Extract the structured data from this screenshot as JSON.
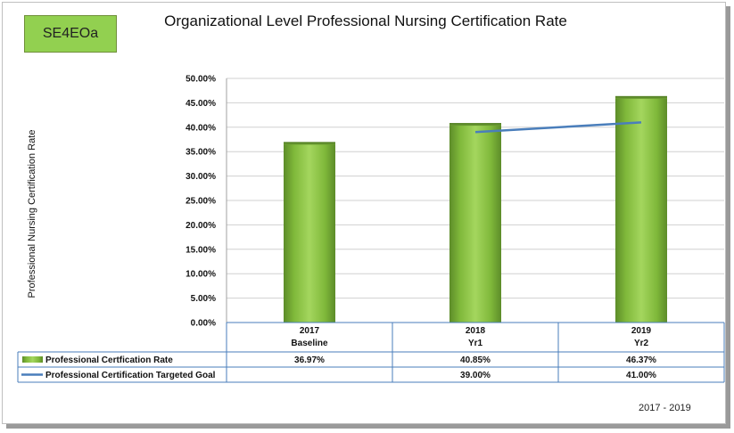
{
  "badge": "SE4EOa",
  "footer": "2017 - 2019",
  "chart_data": {
    "type": "bar",
    "title": "Organizational Level Professional Nursing Certification Rate",
    "ylabel": "Professional Nursing Certification Rate",
    "xlabel": "",
    "categories": [
      [
        "2017",
        "Baseline"
      ],
      [
        "2018",
        "Yr1"
      ],
      [
        "2019",
        "Yr2"
      ]
    ],
    "ylim": [
      0,
      50
    ],
    "yticks": [
      "50.00%",
      "45.00%",
      "40.00%",
      "35.00%",
      "30.00%",
      "25.00%",
      "20.00%",
      "15.00%",
      "10.00%",
      "5.00%",
      "0.00%"
    ],
    "series": [
      {
        "name": "Professional Certfication Rate",
        "kind": "bar",
        "color": "#8cc63f",
        "values": [
          36.97,
          40.85,
          46.37
        ],
        "labels": [
          "36.97%",
          "40.85%",
          "46.37%"
        ]
      },
      {
        "name": "Professional Certification Targeted Goal",
        "kind": "line",
        "color": "#4a7ebb",
        "values": [
          null,
          39.0,
          41.0
        ],
        "labels": [
          "",
          "39.00%",
          "41.00%"
        ]
      }
    ],
    "grid": true,
    "data_table": true
  }
}
